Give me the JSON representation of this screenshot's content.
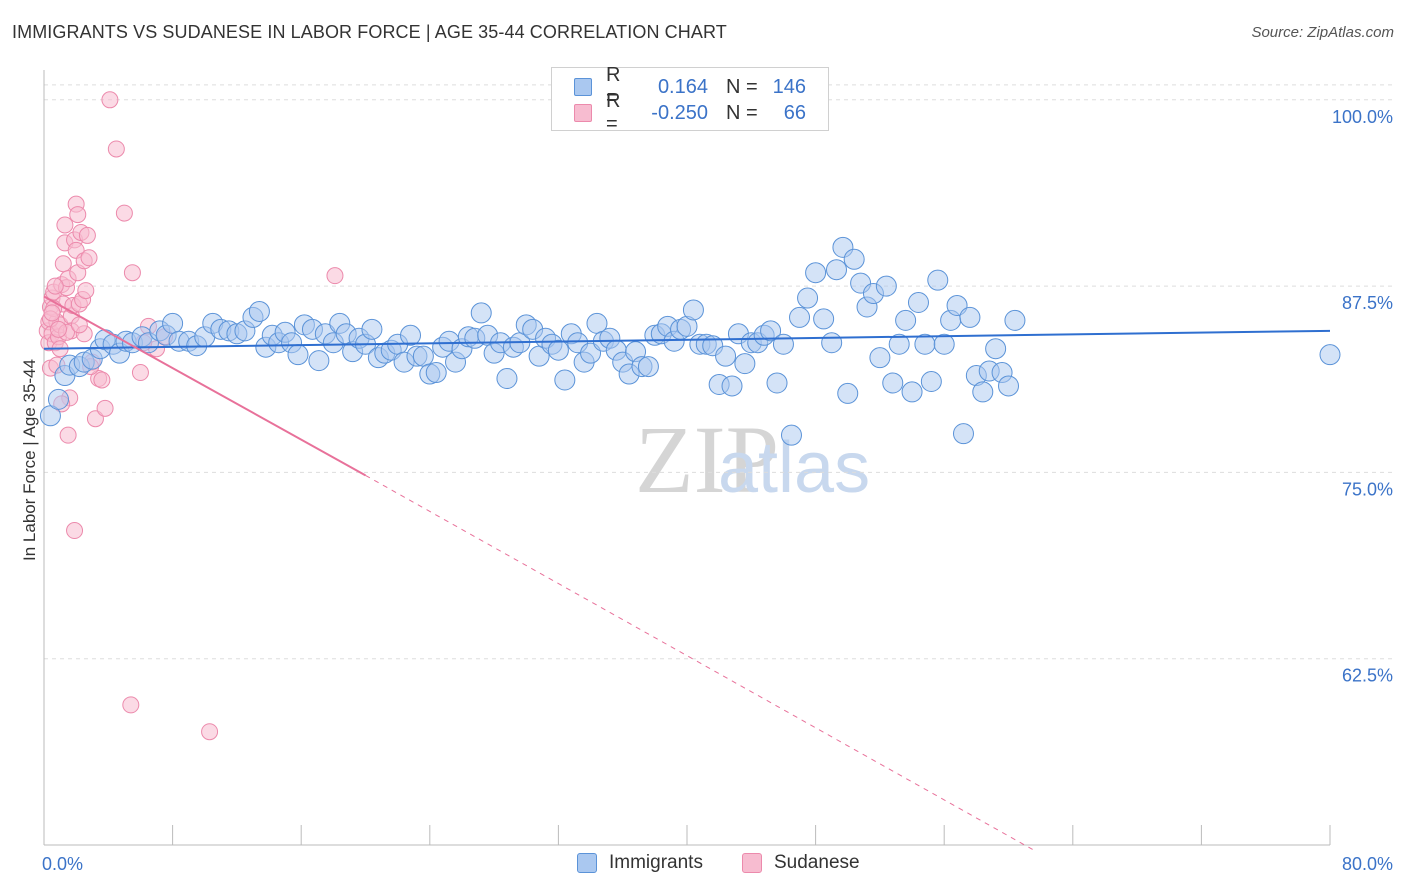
{
  "title": "IMMIGRANTS VS SUDANESE IN LABOR FORCE | AGE 35-44 CORRELATION CHART",
  "source": "Source: ZipAtlas.com",
  "watermark": {
    "zip": "ZIP",
    "atlas": "atlas"
  },
  "legend": {
    "rows": [
      {
        "r_label": "R =",
        "r_value": "0.164",
        "n_label": "N =",
        "n_value": "146"
      },
      {
        "r_label": "R =",
        "r_value": "-0.250",
        "n_label": "N =",
        "n_value": "66"
      }
    ]
  },
  "colors": {
    "immigrants_fill": "#aac8f0",
    "immigrants_stroke": "#5b93d8",
    "immigrants_line": "#2f6fd0",
    "sudanese_fill": "#f7bcd0",
    "sudanese_stroke": "#ec8aac",
    "sudanese_line": "#e8719a",
    "tick_text": "#3b73c8",
    "grid": "#dddddd"
  },
  "chart_data": {
    "type": "scatter",
    "title": "IMMIGRANTS VS SUDANESE IN LABOR FORCE | AGE 35-44 CORRELATION CHART",
    "xlabel": "",
    "ylabel": "In Labor Force | Age 35-44",
    "xlim": [
      0,
      80
    ],
    "ylim": [
      50,
      102
    ],
    "x_tick_labels": [
      "0.0%",
      "80.0%"
    ],
    "y_ticks": [
      62.5,
      75.0,
      87.5,
      100.0
    ],
    "y_tick_labels": [
      "62.5%",
      "75.0%",
      "87.5%",
      "100.0%"
    ],
    "grid": true,
    "legend_position": "top-center",
    "series": [
      {
        "name": "Immigrants",
        "trend": {
          "x": [
            0,
            80
          ],
          "y": [
            83.3,
            84.5
          ]
        },
        "points": [
          [
            0.4,
            78.8
          ],
          [
            0.9,
            79.9
          ],
          [
            1.3,
            81.5
          ],
          [
            1.6,
            82.2
          ],
          [
            2.2,
            82.1
          ],
          [
            2.5,
            82.4
          ],
          [
            3.0,
            82.6
          ],
          [
            3.5,
            83.3
          ],
          [
            3.8,
            83.9
          ],
          [
            4.3,
            83.6
          ],
          [
            4.7,
            83.0
          ],
          [
            5.1,
            83.8
          ],
          [
            5.5,
            83.7
          ],
          [
            6.1,
            84.1
          ],
          [
            6.5,
            83.7
          ],
          [
            7.2,
            84.5
          ],
          [
            7.6,
            84.2
          ],
          [
            8.0,
            85.0
          ],
          [
            8.4,
            83.8
          ],
          [
            9.0,
            83.8
          ],
          [
            9.5,
            83.5
          ],
          [
            10.0,
            84.1
          ],
          [
            10.5,
            85.0
          ],
          [
            11.0,
            84.6
          ],
          [
            11.5,
            84.5
          ],
          [
            12.0,
            84.3
          ],
          [
            12.5,
            84.5
          ],
          [
            13.0,
            85.4
          ],
          [
            13.4,
            85.8
          ],
          [
            13.8,
            83.4
          ],
          [
            14.2,
            84.2
          ],
          [
            14.6,
            83.7
          ],
          [
            15.0,
            84.4
          ],
          [
            15.4,
            83.7
          ],
          [
            15.8,
            82.9
          ],
          [
            16.2,
            84.9
          ],
          [
            16.7,
            84.6
          ],
          [
            17.1,
            82.5
          ],
          [
            17.5,
            84.3
          ],
          [
            18.0,
            83.7
          ],
          [
            18.4,
            85.0
          ],
          [
            18.8,
            84.3
          ],
          [
            19.2,
            83.1
          ],
          [
            19.6,
            84.0
          ],
          [
            20.0,
            83.6
          ],
          [
            20.4,
            84.6
          ],
          [
            20.8,
            82.7
          ],
          [
            21.2,
            83.0
          ],
          [
            21.6,
            83.2
          ],
          [
            22.0,
            83.6
          ],
          [
            22.4,
            82.4
          ],
          [
            22.8,
            84.2
          ],
          [
            23.2,
            82.8
          ],
          [
            23.6,
            82.8
          ],
          [
            24.0,
            81.6
          ],
          [
            24.4,
            81.7
          ],
          [
            24.8,
            83.4
          ],
          [
            25.2,
            83.8
          ],
          [
            25.6,
            82.4
          ],
          [
            26.0,
            83.3
          ],
          [
            26.4,
            84.1
          ],
          [
            26.8,
            84.0
          ],
          [
            27.2,
            85.7
          ],
          [
            27.6,
            84.2
          ],
          [
            28.0,
            83.0
          ],
          [
            28.4,
            83.7
          ],
          [
            28.8,
            81.3
          ],
          [
            29.2,
            83.4
          ],
          [
            29.6,
            83.7
          ],
          [
            30.0,
            84.9
          ],
          [
            30.4,
            84.6
          ],
          [
            30.8,
            82.8
          ],
          [
            31.2,
            84.0
          ],
          [
            31.6,
            83.6
          ],
          [
            32.0,
            83.2
          ],
          [
            32.4,
            81.2
          ],
          [
            32.8,
            84.3
          ],
          [
            33.2,
            83.7
          ],
          [
            33.6,
            82.4
          ],
          [
            34.0,
            83.0
          ],
          [
            34.4,
            85.0
          ],
          [
            34.8,
            83.8
          ],
          [
            35.2,
            84.0
          ],
          [
            35.6,
            83.2
          ],
          [
            36.0,
            82.4
          ],
          [
            36.4,
            81.6
          ],
          [
            36.8,
            83.1
          ],
          [
            37.2,
            82.1
          ],
          [
            37.6,
            82.1
          ],
          [
            38.0,
            84.2
          ],
          [
            38.4,
            84.3
          ],
          [
            38.8,
            84.8
          ],
          [
            39.2,
            83.8
          ],
          [
            39.6,
            84.6
          ],
          [
            40.0,
            84.8
          ],
          [
            40.4,
            85.9
          ],
          [
            40.8,
            83.6
          ],
          [
            41.2,
            83.6
          ],
          [
            41.6,
            83.5
          ],
          [
            42.0,
            80.9
          ],
          [
            42.4,
            82.8
          ],
          [
            42.8,
            80.8
          ],
          [
            43.2,
            84.3
          ],
          [
            43.6,
            82.3
          ],
          [
            44.0,
            83.7
          ],
          [
            44.4,
            83.7
          ],
          [
            44.8,
            84.2
          ],
          [
            45.2,
            84.5
          ],
          [
            45.6,
            81.0
          ],
          [
            46.0,
            83.6
          ],
          [
            46.5,
            77.5
          ],
          [
            47.0,
            85.4
          ],
          [
            47.5,
            86.7
          ],
          [
            48.0,
            88.4
          ],
          [
            48.5,
            85.3
          ],
          [
            49.0,
            83.7
          ],
          [
            49.3,
            88.6
          ],
          [
            49.7,
            90.1
          ],
          [
            50.0,
            80.3
          ],
          [
            50.4,
            89.3
          ],
          [
            50.8,
            87.7
          ],
          [
            51.2,
            86.1
          ],
          [
            51.6,
            87.0
          ],
          [
            52.0,
            82.7
          ],
          [
            52.4,
            87.5
          ],
          [
            52.8,
            81.0
          ],
          [
            53.2,
            83.6
          ],
          [
            53.6,
            85.2
          ],
          [
            54.0,
            80.4
          ],
          [
            54.4,
            86.4
          ],
          [
            54.8,
            83.6
          ],
          [
            55.2,
            81.1
          ],
          [
            55.6,
            87.9
          ],
          [
            56.0,
            83.6
          ],
          [
            56.4,
            85.2
          ],
          [
            56.8,
            86.2
          ],
          [
            57.2,
            77.6
          ],
          [
            57.6,
            85.4
          ],
          [
            58.0,
            81.5
          ],
          [
            58.4,
            80.4
          ],
          [
            58.8,
            81.8
          ],
          [
            59.2,
            83.3
          ],
          [
            59.6,
            81.7
          ],
          [
            60.0,
            80.8
          ],
          [
            60.4,
            85.2
          ],
          [
            80.0,
            82.9
          ]
        ]
      },
      {
        "name": "Sudanese",
        "trend": {
          "x": [
            0,
            20
          ],
          "y": [
            86.8,
            74.8
          ]
        },
        "trend_extension": {
          "x": [
            20,
            61.5
          ],
          "y": [
            74.8,
            49.7
          ]
        },
        "points": [
          [
            0.2,
            84.5
          ],
          [
            0.3,
            85.1
          ],
          [
            0.3,
            83.7
          ],
          [
            0.4,
            82.0
          ],
          [
            0.4,
            86.1
          ],
          [
            0.5,
            84.3
          ],
          [
            0.5,
            86.7
          ],
          [
            0.6,
            87.1
          ],
          [
            0.7,
            83.7
          ],
          [
            0.8,
            85.1
          ],
          [
            0.9,
            84.1
          ],
          [
            1.0,
            84.9
          ],
          [
            1.0,
            83.3
          ],
          [
            1.1,
            87.6
          ],
          [
            1.2,
            86.3
          ],
          [
            1.2,
            89.0
          ],
          [
            1.3,
            90.4
          ],
          [
            1.3,
            91.6
          ],
          [
            1.4,
            87.4
          ],
          [
            1.5,
            88.0
          ],
          [
            1.6,
            80.0
          ],
          [
            1.7,
            85.5
          ],
          [
            1.7,
            84.5
          ],
          [
            1.8,
            86.2
          ],
          [
            1.9,
            90.6
          ],
          [
            2.0,
            93.0
          ],
          [
            2.0,
            89.9
          ],
          [
            2.1,
            92.3
          ],
          [
            2.1,
            88.4
          ],
          [
            2.2,
            86.3
          ],
          [
            2.3,
            91.1
          ],
          [
            2.4,
            86.6
          ],
          [
            2.5,
            84.3
          ],
          [
            2.5,
            89.2
          ],
          [
            2.6,
            87.2
          ],
          [
            2.7,
            90.9
          ],
          [
            2.8,
            89.4
          ],
          [
            3.0,
            82.4
          ],
          [
            3.2,
            78.6
          ],
          [
            3.4,
            81.3
          ],
          [
            3.6,
            81.2
          ],
          [
            3.8,
            79.3
          ],
          [
            4.1,
            100.0
          ],
          [
            4.5,
            96.7
          ],
          [
            5.0,
            92.4
          ],
          [
            5.5,
            88.4
          ],
          [
            6.0,
            81.7
          ],
          [
            6.5,
            84.8
          ],
          [
            7.0,
            83.3
          ],
          [
            7.5,
            84.1
          ],
          [
            1.9,
            71.1
          ],
          [
            5.4,
            59.4
          ],
          [
            10.3,
            57.6
          ],
          [
            18.1,
            88.2
          ],
          [
            0.6,
            86.0
          ],
          [
            0.8,
            82.2
          ],
          [
            1.4,
            84.4
          ],
          [
            2.2,
            84.9
          ],
          [
            1.1,
            79.6
          ],
          [
            0.4,
            85.3
          ],
          [
            0.5,
            85.7
          ],
          [
            0.7,
            87.5
          ],
          [
            0.9,
            84.6
          ],
          [
            1.5,
            77.5
          ],
          [
            2.9,
            82.1
          ],
          [
            6.2,
            83.7
          ]
        ]
      }
    ]
  }
}
